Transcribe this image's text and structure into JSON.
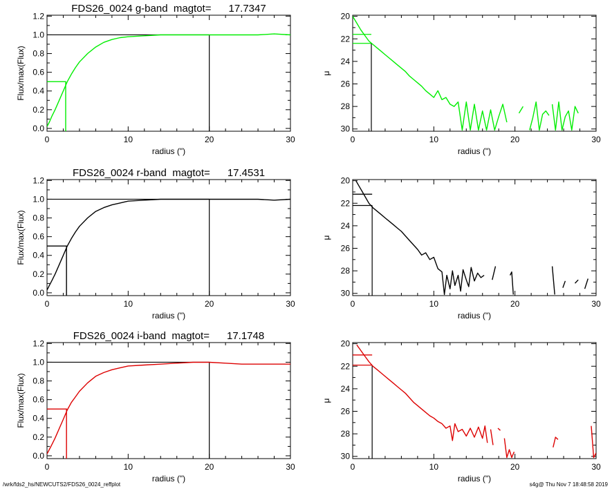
{
  "footer": {
    "path": "/wrk/fds2_hs/NEWCUTS2/FDS26_0024_reffplot",
    "stamp": "s4g@  Thu Nov  7 18:48:58 2019"
  },
  "chart_data": [
    {
      "type": "line",
      "title": "FDS26_0024 g-band  magtot=      17.7347",
      "xlabel": "radius (\")",
      "ylabel": "Flux/max(Flux)",
      "xlim": [
        0,
        30
      ],
      "ylim": [
        -0.03,
        1.21
      ],
      "xticks": [
        0,
        10,
        20,
        30
      ],
      "yticks": [
        0.0,
        0.2,
        0.4,
        0.6,
        0.8,
        1.0,
        1.2
      ],
      "color": "#00ee00",
      "series": [
        {
          "x": [
            0,
            0.3,
            0.6,
            1,
            1.5,
            2,
            2.5,
            3,
            3.5,
            4,
            5,
            6,
            7,
            8,
            9,
            10,
            12,
            14,
            16,
            18,
            20,
            22,
            24,
            26,
            28,
            30
          ],
          "y": [
            0.02,
            0.07,
            0.13,
            0.2,
            0.3,
            0.4,
            0.5,
            0.58,
            0.65,
            0.71,
            0.8,
            0.87,
            0.92,
            0.95,
            0.97,
            0.98,
            0.99,
            1.0,
            1.0,
            1.0,
            1.0,
            1.0,
            1.0,
            1.0,
            1.01,
            1.0
          ]
        }
      ],
      "reference_lines": {
        "r_half": 2.3,
        "half_flux": 0.5,
        "r_total": 20.0,
        "total_flux": 1.0
      }
    },
    {
      "type": "line",
      "title": "",
      "xlabel": "radius (\")",
      "ylabel": "μ",
      "xlim": [
        0,
        30
      ],
      "ylim": [
        30.2,
        19.9
      ],
      "xticks": [
        0,
        10,
        20,
        30
      ],
      "yticks": [
        20,
        22,
        24,
        26,
        28,
        30
      ],
      "color": "#00ee00",
      "series": [
        {
          "x": [
            0,
            0.5,
            1,
            1.5,
            2,
            2.5,
            3,
            3.5,
            4,
            4.5,
            5,
            5.5,
            6,
            6.5,
            7,
            7.5,
            8,
            8.5,
            9,
            9.5,
            10,
            10.5,
            11,
            11.5,
            12,
            12.5,
            13,
            13.5,
            14,
            14.5,
            15,
            15.5,
            16,
            16.5,
            17,
            17.5,
            18,
            18.5,
            19
          ],
          "y": [
            20.0,
            20.6,
            21.2,
            21.7,
            22.2,
            22.5,
            22.8,
            23.1,
            23.4,
            23.7,
            24.0,
            24.3,
            24.6,
            24.9,
            25.3,
            25.6,
            25.9,
            26.2,
            26.6,
            26.9,
            27.2,
            26.6,
            27.4,
            27.2,
            27.8,
            28.0,
            27.6,
            30.1,
            27.6,
            30.1,
            27.8,
            30.1,
            28.4,
            30.1,
            28.3,
            30.1,
            28.9,
            27.8,
            29.4
          ]
        },
        {
          "x": [
            20.5,
            21.0
          ],
          "y": [
            28.6,
            28.0
          ]
        },
        {
          "x": [
            21.8,
            22.2,
            22.6,
            23.0,
            23.4,
            23.8,
            24.2
          ],
          "y": [
            30.1,
            29.0,
            27.6,
            30.1,
            28.7,
            28.4,
            28.8
          ]
        },
        {
          "x": [
            24.6,
            25.0,
            25.4,
            25.8,
            26.2,
            26.6,
            27.0,
            27.4,
            27.8
          ],
          "y": [
            27.8,
            30.1,
            27.6,
            30.1,
            28.9,
            28.4,
            30.1,
            28.0,
            28.6
          ]
        }
      ],
      "reference_lines": {
        "r_half": 2.3,
        "mu_half": 22.4,
        "mu_total": 21.6
      }
    },
    {
      "type": "line",
      "title": "FDS26_0024 r-band  magtot=      17.4531",
      "xlabel": "radius (\")",
      "ylabel": "Flux/max(Flux)",
      "xlim": [
        0,
        30
      ],
      "ylim": [
        -0.03,
        1.21
      ],
      "xticks": [
        0,
        10,
        20,
        30
      ],
      "yticks": [
        0.0,
        0.2,
        0.4,
        0.6,
        0.8,
        1.0,
        1.2
      ],
      "color": "#000000",
      "series": [
        {
          "x": [
            0,
            0.3,
            0.6,
            1,
            1.5,
            2,
            2.5,
            3,
            3.5,
            4,
            5,
            6,
            7,
            8,
            9,
            10,
            12,
            14,
            16,
            18,
            20,
            22,
            24,
            26,
            28,
            30
          ],
          "y": [
            0.03,
            0.08,
            0.13,
            0.2,
            0.3,
            0.4,
            0.5,
            0.58,
            0.65,
            0.71,
            0.8,
            0.87,
            0.91,
            0.94,
            0.96,
            0.98,
            0.99,
            1.0,
            1.0,
            1.0,
            1.0,
            1.0,
            1.0,
            1.0,
            0.99,
            1.0
          ]
        }
      ],
      "reference_lines": {
        "r_half": 2.4,
        "half_flux": 0.5,
        "r_total": 20.0,
        "total_flux": 1.0
      }
    },
    {
      "type": "line",
      "title": "",
      "xlabel": "radius (\")",
      "ylabel": "μ",
      "xlim": [
        0,
        30
      ],
      "ylim": [
        30.2,
        19.9
      ],
      "xticks": [
        0,
        10,
        20,
        30
      ],
      "yticks": [
        20,
        22,
        24,
        26,
        28,
        30
      ],
      "color": "#000000",
      "series": [
        {
          "x": [
            0.4,
            0.8,
            1.2,
            1.6,
            2.0,
            2.5,
            3,
            3.5,
            4,
            4.5,
            5,
            5.5,
            6,
            6.5,
            7,
            7.5,
            8,
            8.5,
            9,
            9.5,
            10,
            10.5,
            11,
            11.3,
            11.6,
            12,
            12.3,
            12.6,
            13,
            13.3,
            13.6,
            14,
            14.3,
            14.6,
            15,
            15.4,
            15.8,
            16.2
          ],
          "y": [
            20.0,
            20.5,
            21.0,
            21.5,
            22.0,
            22.4,
            22.7,
            23.0,
            23.3,
            23.6,
            23.9,
            24.2,
            24.5,
            24.9,
            25.3,
            25.7,
            26.1,
            26.6,
            26.4,
            27.0,
            26.8,
            27.8,
            28.1,
            30.1,
            28.4,
            29.6,
            28.0,
            29.3,
            28.4,
            29.8,
            27.9,
            28.8,
            29.4,
            27.7,
            28.9,
            28.2,
            28.6,
            28.4
          ]
        },
        {
          "x": [
            17.2,
            17.6
          ],
          "y": [
            28.8,
            27.6
          ]
        },
        {
          "x": [
            19.4,
            19.6,
            19.8
          ],
          "y": [
            28.4,
            28.1,
            30.1
          ]
        },
        {
          "x": [
            24.6,
            24.9
          ],
          "y": [
            27.6,
            30.1
          ]
        },
        {
          "x": [
            25.9,
            26.2
          ],
          "y": [
            29.5,
            28.9
          ]
        },
        {
          "x": [
            27.4,
            27.8
          ],
          "y": [
            29.1,
            28.8
          ]
        },
        {
          "x": [
            28.6,
            29.0
          ],
          "y": [
            29.6,
            28.7
          ]
        }
      ],
      "reference_lines": {
        "r_half": 2.4,
        "mu_half": 22.2,
        "mu_total": 21.2
      }
    },
    {
      "type": "line",
      "title": "FDS26_0024 i-band  magtot=      17.1748",
      "xlabel": "radius (\")",
      "ylabel": "Flux/max(Flux)",
      "xlim": [
        0,
        30
      ],
      "ylim": [
        -0.03,
        1.21
      ],
      "xticks": [
        0,
        10,
        20,
        30
      ],
      "yticks": [
        0.0,
        0.2,
        0.4,
        0.6,
        0.8,
        1.0,
        1.2
      ],
      "color": "#dd0000",
      "series": [
        {
          "x": [
            0,
            0.3,
            0.6,
            1,
            1.5,
            2,
            2.5,
            3,
            3.5,
            4,
            5,
            6,
            7,
            8,
            9,
            10,
            12,
            14,
            16,
            18,
            20,
            22,
            24,
            26,
            28,
            30
          ],
          "y": [
            0.02,
            0.07,
            0.12,
            0.19,
            0.29,
            0.39,
            0.49,
            0.57,
            0.63,
            0.69,
            0.78,
            0.85,
            0.89,
            0.92,
            0.94,
            0.96,
            0.97,
            0.98,
            0.99,
            1.0,
            1.0,
            0.99,
            0.98,
            0.98,
            0.98,
            0.98
          ]
        }
      ],
      "reference_lines": {
        "r_half": 2.4,
        "half_flux": 0.5,
        "r_total": 20.0,
        "total_flux": 1.0
      }
    },
    {
      "type": "line",
      "title": "",
      "xlabel": "radius (\")",
      "ylabel": "μ",
      "xlim": [
        0,
        30
      ],
      "ylim": [
        30.2,
        19.9
      ],
      "xticks": [
        0,
        10,
        20,
        30
      ],
      "yticks": [
        20,
        22,
        24,
        26,
        28,
        30
      ],
      "color": "#dd0000",
      "series": [
        {
          "x": [
            0.5,
            1,
            1.5,
            2,
            2.5,
            3,
            3.5,
            4,
            4.5,
            5,
            5.5,
            6,
            6.5,
            7,
            7.5,
            8,
            8.5,
            9,
            9.5,
            10,
            10.5,
            11,
            11.5,
            12,
            12.3,
            12.6,
            13,
            13.5,
            14,
            14.5,
            15,
            15.5,
            16,
            16.3,
            16.6
          ],
          "y": [
            20.1,
            20.6,
            21.1,
            21.6,
            22.0,
            22.3,
            22.6,
            22.9,
            23.2,
            23.5,
            23.8,
            24.1,
            24.4,
            24.8,
            25.2,
            25.5,
            25.8,
            26.1,
            26.4,
            26.6,
            26.9,
            27.1,
            27.5,
            27.3,
            28.6,
            27.1,
            27.8,
            27.6,
            28.2,
            27.5,
            28.3,
            27.4,
            28.4,
            27.3,
            28.8
          ]
        },
        {
          "x": [
            17.0,
            17.3
          ],
          "y": [
            27.6,
            29.0
          ]
        },
        {
          "x": [
            17.9,
            18.2
          ],
          "y": [
            27.5,
            27.7
          ]
        },
        {
          "x": [
            18.7,
            19.0,
            19.3,
            19.6,
            19.9
          ],
          "y": [
            28.4,
            30.1,
            29.4,
            30.1,
            29.6
          ]
        },
        {
          "x": [
            24.7,
            25.0,
            25.3
          ],
          "y": [
            29.2,
            28.3,
            28.5
          ]
        },
        {
          "x": [
            29.4,
            29.7,
            30.0
          ],
          "y": [
            27.3,
            30.1,
            29.7
          ]
        }
      ],
      "reference_lines": {
        "r_half": 2.4,
        "mu_half": 21.9,
        "mu_total": 21.0
      }
    }
  ]
}
